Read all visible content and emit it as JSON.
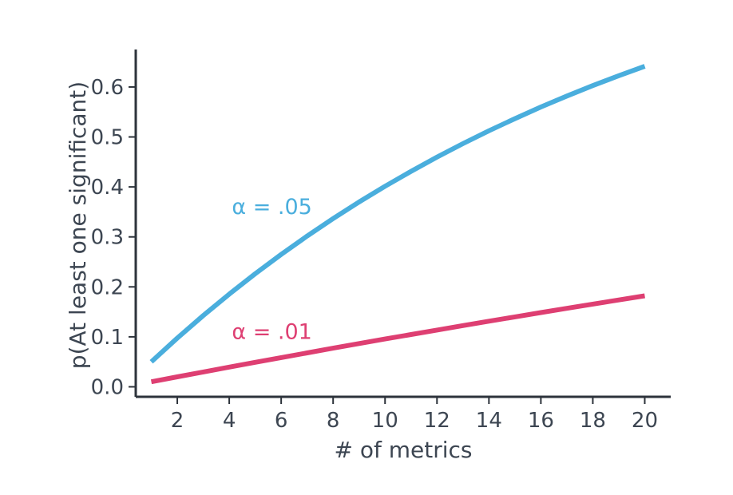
{
  "chart_data": {
    "type": "line",
    "title": "",
    "xlabel": "# of metrics",
    "ylabel": "p(At least one significant)",
    "xlim": [
      0.4,
      21
    ],
    "ylim": [
      -0.02,
      0.675
    ],
    "xticks": [
      2,
      4,
      6,
      8,
      10,
      12,
      14,
      16,
      18,
      20
    ],
    "yticks": [
      0.0,
      0.1,
      0.2,
      0.3,
      0.4,
      0.5,
      0.6
    ],
    "ytick_labels": [
      "0.0",
      "0.1",
      "0.2",
      "0.3",
      "0.4",
      "0.5",
      "0.6"
    ],
    "grid": false,
    "legend": "none",
    "x": [
      1,
      2,
      3,
      4,
      5,
      6,
      7,
      8,
      9,
      10,
      11,
      12,
      13,
      14,
      15,
      16,
      17,
      18,
      19,
      20
    ],
    "series": [
      {
        "label": "α = .05",
        "color": "#4aaedd",
        "label_anchor": [
          4.1,
          0.36
        ],
        "values": [
          0.05,
          0.0975,
          0.1426,
          0.1855,
          0.2262,
          0.2649,
          0.3017,
          0.3366,
          0.3698,
          0.4013,
          0.4312,
          0.4596,
          0.4867,
          0.5123,
          0.5367,
          0.5599,
          0.5819,
          0.6028,
          0.6226,
          0.6415
        ]
      },
      {
        "label": "α = .01",
        "color": "#de3f72",
        "label_anchor": [
          4.1,
          0.11
        ],
        "values": [
          0.01,
          0.0199,
          0.0297,
          0.0394,
          0.049,
          0.0585,
          0.0679,
          0.0773,
          0.0865,
          0.0956,
          0.1047,
          0.1136,
          0.1225,
          0.1313,
          0.14,
          0.1486,
          0.1571,
          0.1655,
          0.1738,
          0.1821
        ]
      }
    ]
  }
}
